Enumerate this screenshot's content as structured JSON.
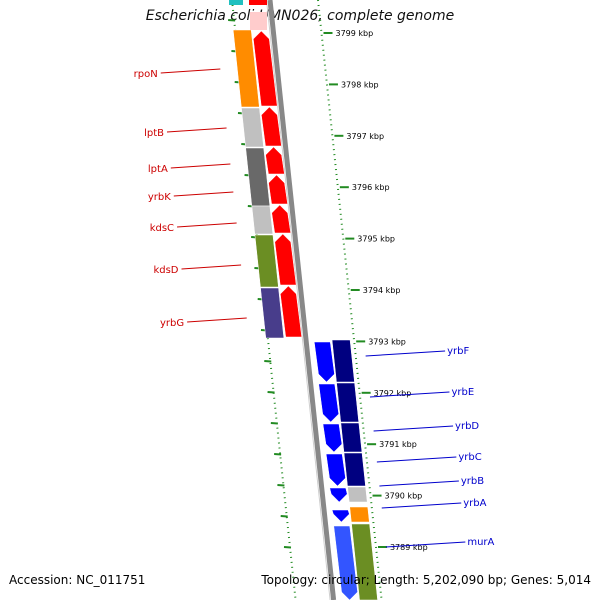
{
  "title": "Escherichia coli UMN026, complete genome",
  "footer": {
    "accession": "Accession: NC_011751",
    "summary": "Topology: circular; Length: 5,202,090 bp; Genes: 5,014"
  },
  "colors": {
    "forward_arrow": "#ff0000",
    "reverse_arrow": "#0000ff",
    "reverse_arrow_dark": "#000080",
    "label_forward": "#cc0000",
    "label_reverse": "#0000cc",
    "tick": "#228b22",
    "backbone": "#888888"
  },
  "ruler": {
    "unit": "kbp",
    "ticks": [
      {
        "label": "3799 kbp"
      },
      {
        "label": "3798 kbp"
      },
      {
        "label": "3797 kbp"
      },
      {
        "label": "3796 kbp"
      },
      {
        "label": "3795 kbp"
      },
      {
        "label": "3794 kbp"
      },
      {
        "label": "3793 kbp"
      },
      {
        "label": "3792 kbp"
      },
      {
        "label": "3791 kbp"
      },
      {
        "label": "3790 kbp"
      },
      {
        "label": "3789 kbp"
      }
    ]
  },
  "genes_left": [
    {
      "name": "rpoN",
      "color": "#ff8c00"
    },
    {
      "name": "lptB",
      "color": "#c0c0c0"
    },
    {
      "name": "lptA",
      "color": "#696969"
    },
    {
      "name": "yrbK",
      "color": "#696969"
    },
    {
      "name": "kdsC",
      "color": "#c0c0c0"
    },
    {
      "name": "kdsD",
      "color": "#6b8e23"
    },
    {
      "name": "yrbG",
      "color": "#483d8b"
    }
  ],
  "genes_right": [
    {
      "name": "yrbF",
      "color": "#000080"
    },
    {
      "name": "yrbE",
      "color": "#000080"
    },
    {
      "name": "yrbD",
      "color": "#000080"
    },
    {
      "name": "yrbC",
      "color": "#000080"
    },
    {
      "name": "yrbB",
      "color": "#c0c0c0"
    },
    {
      "name": "yrbA",
      "color": "#ff8c00"
    },
    {
      "name": "murA",
      "color": "#6b8e23"
    }
  ]
}
